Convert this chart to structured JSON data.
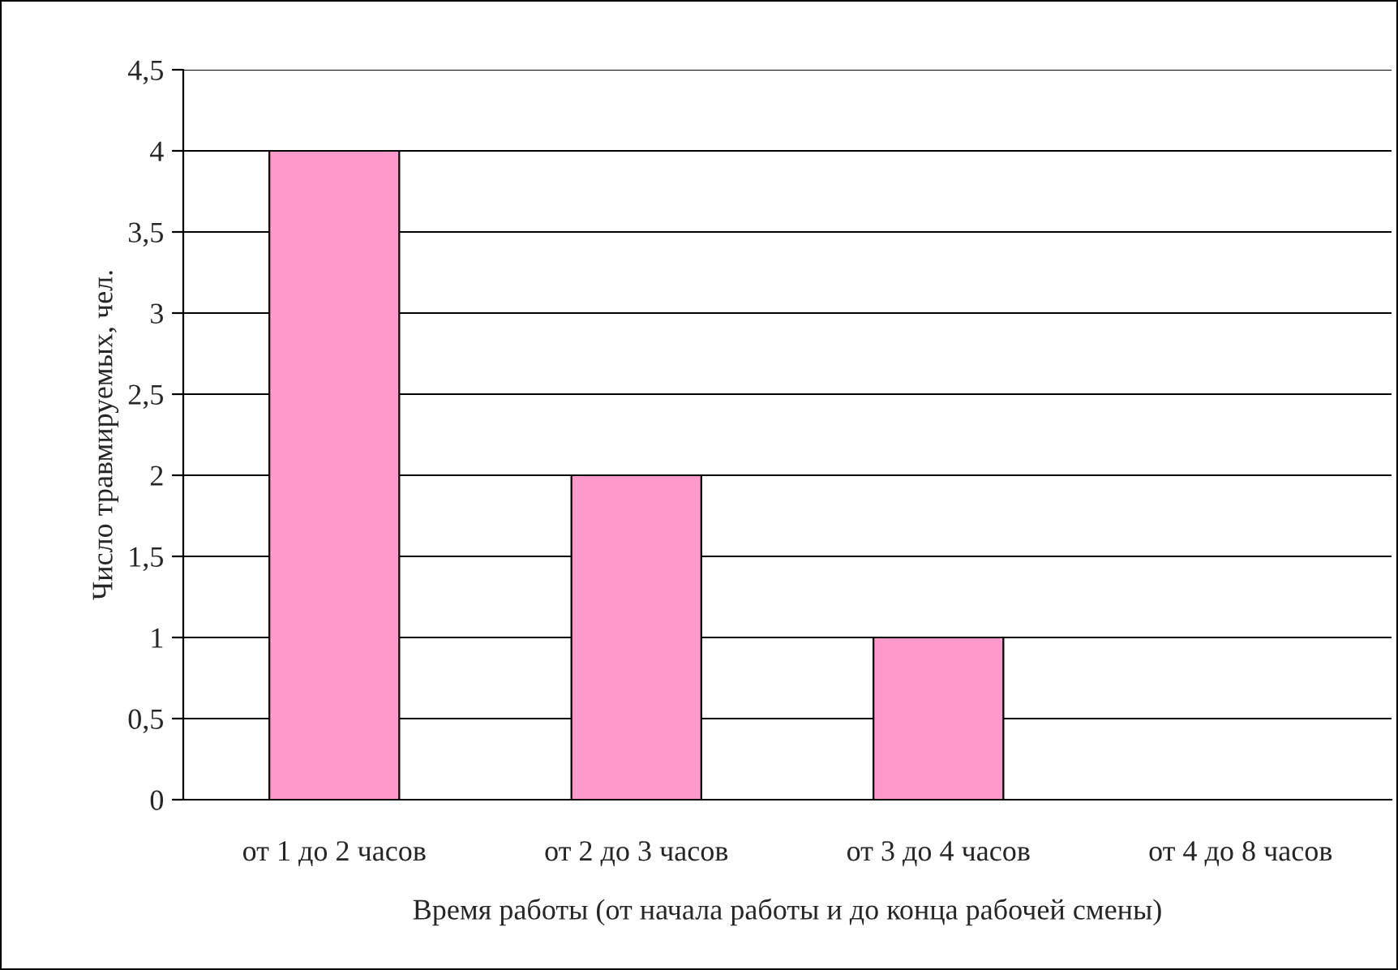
{
  "chart_data": {
    "type": "bar",
    "xlabel": "Время работы (от начала работы и до конца рабочей смены)",
    "ylabel": "Число травмируемых, чел.",
    "categories": [
      "от 1 до 2 часов",
      "от 2 до 3 часов",
      "от 3 до 4 часов",
      "от 4 до 8 часов"
    ],
    "values": [
      4,
      2,
      1,
      0
    ],
    "color": "#ff99cc",
    "ylim": [
      0,
      4.5
    ],
    "yticks": [
      0,
      {
        "value": 0.5,
        "label": "0,5"
      },
      1,
      {
        "value": 1.5,
        "label": "1,5"
      },
      2,
      {
        "value": 2.5,
        "label": "2,5"
      },
      3,
      {
        "value": 3.5,
        "label": "3,5"
      },
      4,
      {
        "value": 4.5,
        "label": "4,5"
      }
    ],
    "grid": "y",
    "legend": false
  }
}
